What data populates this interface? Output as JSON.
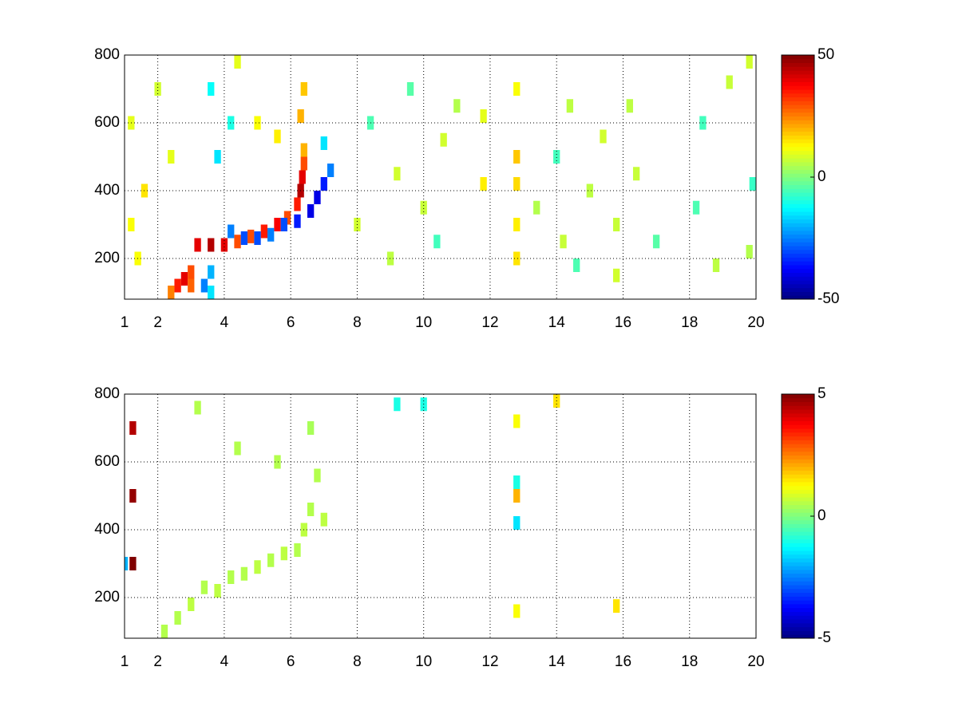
{
  "chart_data": [
    {
      "type": "heatmap",
      "colormap": "jet",
      "grid": true,
      "xlim": [
        1,
        20
      ],
      "ylim": [
        80,
        800
      ],
      "xticks": [
        1,
        2,
        4,
        6,
        8,
        10,
        12,
        14,
        16,
        18,
        20
      ],
      "yticks": [
        200,
        400,
        600,
        800
      ],
      "clim": [
        -50,
        50
      ],
      "cticks": [
        -50,
        0,
        50
      ],
      "x": [
        2.6,
        2.8,
        3.0,
        2.4,
        3.0,
        3.4,
        3.6,
        3.6,
        3.2,
        3.6,
        4.0,
        4.4,
        4.8,
        5.2,
        5.6,
        5.9,
        6.2,
        6.3,
        6.35,
        6.4,
        6.4,
        4.2,
        4.6,
        5.0,
        5.4,
        5.8,
        6.2,
        6.6,
        6.8,
        7.0,
        7.2,
        7.0,
        3.8,
        4.2,
        3.6,
        1.2,
        1.2,
        1.6,
        1.4,
        2.0,
        2.4,
        5.0,
        5.6,
        4.4,
        6.4,
        6.3,
        8.0,
        8.4,
        9.0,
        9.2,
        9.6,
        10.0,
        10.4,
        10.6,
        11.0,
        11.8,
        11.8,
        12.8,
        12.8,
        12.8,
        12.8,
        12.8,
        13.4,
        14.0,
        14.2,
        14.4,
        14.6,
        15.0,
        15.4,
        15.8,
        15.8,
        16.2,
        16.4,
        17.0,
        18.2,
        18.4,
        18.8,
        19.2,
        19.8,
        19.9,
        19.8
      ],
      "y": [
        120,
        140,
        160,
        100,
        120,
        120,
        160,
        100,
        240,
        240,
        240,
        250,
        265,
        280,
        300,
        320,
        360,
        400,
        440,
        480,
        520,
        280,
        260,
        260,
        270,
        300,
        310,
        340,
        380,
        420,
        460,
        540,
        500,
        600,
        700,
        300,
        600,
        400,
        200,
        700,
        500,
        600,
        560,
        780,
        700,
        620,
        300,
        600,
        200,
        450,
        700,
        350,
        250,
        550,
        650,
        420,
        620,
        200,
        300,
        420,
        500,
        700,
        350,
        500,
        250,
        650,
        180,
        400,
        560,
        150,
        300,
        650,
        450,
        250,
        350,
        600,
        180,
        720,
        220,
        420,
        780
      ],
      "values": [
        35,
        40,
        30,
        25,
        28,
        -25,
        -20,
        -15,
        40,
        45,
        40,
        30,
        30,
        35,
        38,
        30,
        35,
        45,
        40,
        30,
        20,
        -25,
        -30,
        -30,
        -25,
        -30,
        -35,
        -40,
        -40,
        -35,
        -25,
        -15,
        -15,
        -10,
        -12,
        12,
        10,
        15,
        12,
        8,
        10,
        12,
        14,
        10,
        18,
        20,
        8,
        -5,
        6,
        8,
        -4,
        7,
        -6,
        8,
        5,
        14,
        10,
        15,
        14,
        16,
        18,
        12,
        5,
        -6,
        7,
        6,
        -5,
        6,
        8,
        8,
        7,
        6,
        7,
        -4,
        -5,
        -6,
        6,
        7,
        5,
        -7,
        8
      ]
    },
    {
      "type": "heatmap",
      "colormap": "jet",
      "grid": true,
      "xlim": [
        1,
        20
      ],
      "ylim": [
        80,
        800
      ],
      "xticks": [
        1,
        2,
        4,
        6,
        8,
        10,
        12,
        14,
        16,
        18,
        20
      ],
      "yticks": [
        200,
        400,
        600,
        800
      ],
      "clim": [
        -5,
        5
      ],
      "cticks": [
        -5,
        0,
        5
      ],
      "x": [
        1.25,
        1.25,
        1.25,
        1.0,
        2.2,
        2.6,
        3.0,
        3.4,
        3.8,
        4.2,
        4.6,
        5.0,
        5.4,
        5.8,
        6.2,
        6.4,
        6.6,
        6.8,
        7.0,
        6.6,
        5.6,
        4.4,
        12.8,
        12.8,
        12.8,
        12.8,
        12.8,
        9.2,
        10.0,
        3.2,
        14.0,
        15.8
      ],
      "y": [
        300,
        500,
        700,
        300,
        100,
        140,
        180,
        230,
        220,
        260,
        270,
        290,
        310,
        330,
        340,
        400,
        460,
        560,
        430,
        700,
        600,
        640,
        420,
        500,
        540,
        720,
        160,
        770,
        770,
        760,
        780,
        175
      ],
      "values": [
        5,
        4.8,
        4.5,
        -2,
        0.5,
        0.5,
        0.6,
        0.5,
        0.6,
        0.5,
        0.5,
        0.6,
        0.5,
        0.6,
        0.5,
        0.6,
        0.5,
        0.5,
        0.6,
        0.4,
        0.5,
        0.5,
        -1.5,
        2,
        -1,
        1.2,
        1.2,
        -1,
        -1,
        0.5,
        1.5,
        1.5
      ]
    }
  ]
}
